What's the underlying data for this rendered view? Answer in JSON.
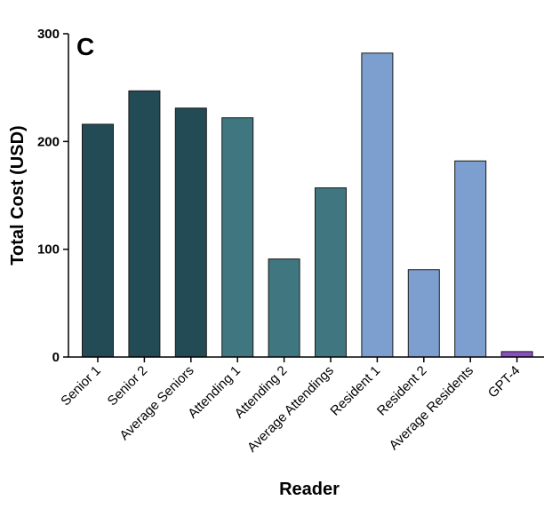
{
  "chart_data": {
    "type": "bar",
    "panel_label": "C",
    "title": "",
    "xlabel": "Reader",
    "ylabel": "Total Cost  (USD)",
    "ylim": [
      0,
      300
    ],
    "yticks": [
      "0",
      "100",
      "200",
      "300"
    ],
    "grid": false,
    "categories": [
      "Senior 1",
      "Senior 2",
      "Average Seniors",
      "Attending 1",
      "Attending 2",
      "Average Attendings",
      "Resident 1",
      "Resident 2",
      "Average Residents",
      "GPT-4"
    ],
    "values": [
      216,
      247,
      231,
      222,
      91,
      157,
      282,
      81,
      182,
      5
    ],
    "colors": [
      "#234b55",
      "#234b55",
      "#234b55",
      "#3f7680",
      "#3f7680",
      "#3f7680",
      "#7c9fcf",
      "#7c9fcf",
      "#7c9fcf",
      "#8a4fbf"
    ]
  }
}
